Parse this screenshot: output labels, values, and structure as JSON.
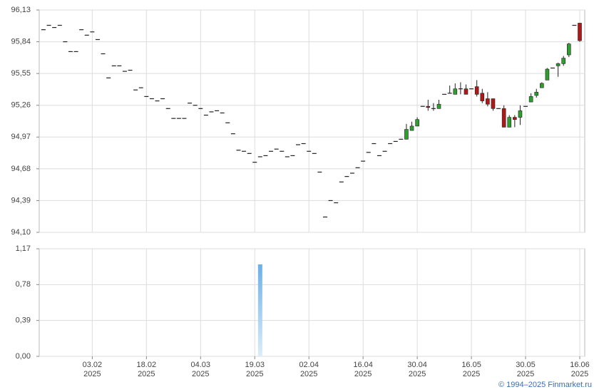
{
  "chart_data": {
    "type": "candlestick",
    "categories": [
      null,
      null,
      null,
      null,
      null,
      null,
      null,
      null,
      null,
      "03.02\n2025",
      null,
      null,
      null,
      null,
      null,
      null,
      null,
      null,
      null,
      "18.02\n2025",
      null,
      null,
      null,
      null,
      null,
      null,
      null,
      null,
      null,
      "04.03\n2025",
      null,
      null,
      null,
      null,
      null,
      null,
      null,
      null,
      null,
      "19.03\n2025",
      null,
      null,
      null,
      null,
      null,
      null,
      null,
      null,
      null,
      "02.04\n2025",
      null,
      null,
      null,
      null,
      null,
      null,
      null,
      null,
      null,
      "16.04\n2025",
      null,
      null,
      null,
      null,
      null,
      null,
      null,
      null,
      null,
      "30.04\n2025",
      null,
      null,
      null,
      null,
      null,
      null,
      null,
      null,
      null,
      "16.05\n2025",
      null,
      null,
      null,
      null,
      null,
      null,
      null,
      null,
      null,
      "30.05\n2025",
      null,
      null,
      null,
      null,
      null,
      null,
      null,
      null,
      null,
      "16.06\n2025"
    ],
    "open": [
      95.95,
      95.99,
      95.97,
      95.99,
      95.84,
      95.75,
      95.75,
      95.95,
      95.9,
      95.93,
      95.86,
      95.73,
      95.51,
      95.62,
      95.62,
      95.57,
      95.58,
      95.4,
      95.42,
      95.34,
      95.32,
      95.3,
      95.32,
      95.23,
      95.14,
      95.14,
      95.14,
      95.28,
      95.26,
      95.23,
      95.17,
      95.2,
      95.21,
      95.19,
      95.1,
      95.0,
      94.85,
      94.84,
      94.82,
      94.74,
      94.79,
      94.8,
      94.84,
      94.86,
      94.84,
      94.79,
      94.8,
      94.9,
      94.91,
      94.84,
      94.82,
      94.65,
      94.24,
      94.39,
      94.37,
      94.56,
      94.61,
      94.64,
      94.69,
      94.75,
      94.83,
      94.91,
      94.8,
      94.84,
      94.91,
      94.93,
      94.95,
      94.95,
      95.03,
      95.07,
      95.25,
      95.25,
      95.23,
      95.23,
      95.36,
      95.37,
      95.36,
      95.41,
      95.41,
      95.41,
      95.43,
      95.37,
      95.32,
      95.32,
      95.23,
      95.23,
      95.06,
      95.15,
      95.15,
      95.25,
      95.29,
      95.35,
      95.42,
      95.49,
      95.6,
      95.62,
      95.64,
      95.72,
      95.99,
      96.01
    ],
    "high": [
      95.95,
      95.99,
      95.97,
      95.99,
      95.84,
      95.75,
      95.75,
      95.95,
      95.9,
      95.93,
      95.86,
      95.73,
      95.51,
      95.62,
      95.62,
      95.57,
      95.58,
      95.4,
      95.42,
      95.34,
      95.32,
      95.3,
      95.32,
      95.23,
      95.14,
      95.14,
      95.14,
      95.28,
      95.26,
      95.23,
      95.17,
      95.2,
      95.21,
      95.19,
      95.1,
      95.0,
      94.85,
      94.84,
      94.82,
      94.74,
      94.79,
      94.8,
      94.84,
      94.86,
      94.84,
      94.79,
      94.8,
      94.9,
      94.91,
      94.84,
      94.82,
      94.65,
      94.24,
      94.39,
      94.37,
      94.56,
      94.61,
      94.64,
      94.69,
      94.75,
      94.83,
      94.91,
      94.8,
      94.84,
      94.91,
      94.93,
      94.95,
      95.09,
      95.11,
      95.15,
      95.25,
      95.31,
      95.28,
      95.31,
      95.36,
      95.44,
      95.46,
      95.47,
      95.45,
      95.41,
      95.49,
      95.41,
      95.38,
      95.32,
      95.23,
      95.26,
      95.17,
      95.17,
      95.26,
      95.25,
      95.37,
      95.41,
      95.47,
      95.6,
      95.6,
      95.65,
      95.71,
      95.83,
      95.99,
      96.01
    ],
    "low": [
      95.95,
      95.99,
      95.97,
      95.99,
      95.84,
      95.75,
      95.75,
      95.95,
      95.9,
      95.93,
      95.86,
      95.73,
      95.51,
      95.62,
      95.62,
      95.57,
      95.58,
      95.4,
      95.42,
      95.34,
      95.32,
      95.3,
      95.32,
      95.23,
      95.14,
      95.14,
      95.14,
      95.28,
      95.26,
      95.23,
      95.17,
      95.2,
      95.21,
      95.19,
      95.1,
      95.0,
      94.85,
      94.84,
      94.82,
      94.74,
      94.79,
      94.8,
      94.84,
      94.86,
      94.84,
      94.79,
      94.8,
      94.9,
      94.91,
      94.84,
      94.82,
      94.65,
      94.24,
      94.39,
      94.37,
      94.56,
      94.61,
      94.64,
      94.69,
      94.75,
      94.83,
      94.91,
      94.8,
      94.84,
      94.91,
      94.93,
      94.95,
      94.95,
      95.03,
      95.07,
      95.25,
      95.21,
      95.21,
      95.23,
      95.36,
      95.37,
      95.36,
      95.36,
      95.36,
      95.41,
      95.34,
      95.28,
      95.25,
      95.21,
      95.23,
      95.06,
      95.06,
      95.06,
      95.08,
      95.25,
      95.29,
      95.33,
      95.42,
      95.49,
      95.6,
      95.52,
      95.62,
      95.7,
      95.99,
      95.84
    ],
    "close": [
      95.95,
      95.99,
      95.97,
      95.99,
      95.84,
      95.75,
      95.75,
      95.95,
      95.9,
      95.93,
      95.86,
      95.73,
      95.51,
      95.62,
      95.62,
      95.57,
      95.58,
      95.4,
      95.42,
      95.34,
      95.32,
      95.3,
      95.32,
      95.23,
      95.14,
      95.14,
      95.14,
      95.28,
      95.26,
      95.23,
      95.17,
      95.2,
      95.21,
      95.19,
      95.1,
      95.0,
      94.85,
      94.84,
      94.82,
      94.74,
      94.79,
      94.8,
      94.84,
      94.86,
      94.84,
      94.79,
      94.8,
      94.9,
      94.91,
      94.84,
      94.82,
      94.65,
      94.24,
      94.39,
      94.37,
      94.56,
      94.61,
      94.64,
      94.69,
      94.75,
      94.83,
      94.91,
      94.8,
      94.84,
      94.91,
      94.93,
      94.95,
      95.04,
      95.07,
      95.13,
      95.25,
      95.24,
      95.23,
      95.27,
      95.36,
      95.37,
      95.41,
      95.41,
      95.36,
      95.41,
      95.36,
      95.3,
      95.27,
      95.23,
      95.23,
      95.06,
      95.15,
      95.13,
      95.21,
      95.25,
      95.34,
      95.38,
      95.46,
      95.59,
      95.6,
      95.64,
      95.69,
      95.82,
      95.99,
      95.85
    ],
    "volume": [
      0,
      0,
      0,
      0,
      0,
      0,
      0,
      0,
      0,
      0,
      0,
      0,
      0,
      0,
      0,
      0,
      0,
      0,
      0,
      0,
      0,
      0,
      0,
      0,
      0,
      0,
      0,
      0,
      0,
      0,
      0,
      0,
      0,
      0,
      0,
      0,
      0,
      0,
      0,
      0,
      1.0,
      0,
      0,
      0,
      0,
      0,
      0,
      0,
      0,
      0,
      0,
      0,
      0,
      0,
      0,
      0,
      0,
      0,
      0,
      0,
      0,
      0,
      0,
      0,
      0,
      0,
      0,
      0,
      0,
      0,
      0,
      0,
      0,
      0,
      0,
      0,
      0,
      0,
      0,
      0,
      0,
      0,
      0,
      0,
      0,
      0,
      0,
      0,
      0,
      0,
      0,
      0,
      0,
      0,
      0,
      0,
      0,
      0,
      0,
      0
    ],
    "up_color": "#2e9e2e",
    "down_color": "#b01818",
    "volume_color": "#6ab0e8",
    "ylim": [
      94.1,
      96.13
    ],
    "yticks": [
      {
        "value": 94.1,
        "label": "94,10"
      },
      {
        "value": 94.39,
        "label": "94,39"
      },
      {
        "value": 94.68,
        "label": "94,68"
      },
      {
        "value": 94.97,
        "label": "94,97"
      },
      {
        "value": 95.26,
        "label": "95,26"
      },
      {
        "value": 95.55,
        "label": "95,55"
      },
      {
        "value": 95.84,
        "label": "95,84"
      },
      {
        "value": 96.13,
        "label": "96,13"
      }
    ],
    "y2lim": [
      0,
      1.17
    ],
    "y2ticks": [
      {
        "value": 0,
        "label": "0,00"
      },
      {
        "value": 0.39,
        "label": "0,39"
      },
      {
        "value": 0.78,
        "label": "0,78"
      },
      {
        "value": 1.17,
        "label": "1,17"
      }
    ],
    "grid": true
  },
  "footer": {
    "copyright": "© 1994–2025 Finmarket.ru"
  }
}
